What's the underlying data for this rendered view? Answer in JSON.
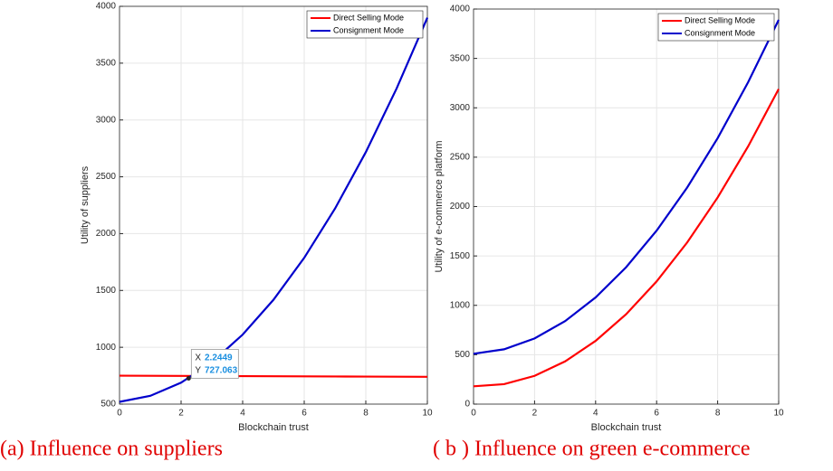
{
  "chart_data": [
    {
      "type": "line",
      "caption": "(a) Influence on suppliers",
      "xlabel": "Blockchain trust",
      "ylabel": "Utility of suppliers",
      "x": [
        0,
        1,
        2,
        3,
        4,
        5,
        6,
        7,
        8,
        9,
        10
      ],
      "series": [
        {
          "name": "Direct Selling Mode",
          "color": "#ff0000",
          "values": [
            750,
            749,
            748,
            747,
            746,
            745,
            744,
            743,
            742,
            741,
            740
          ]
        },
        {
          "name": "Consignment Mode",
          "color": "#0000cc",
          "values": [
            520,
            572.7,
            688.8,
            868.3,
            1111.2,
            1417.5,
            1787.2,
            2220.3,
            2716.8,
            3276.7,
            3900
          ]
        }
      ],
      "xlim": [
        0,
        10
      ],
      "xticks": [
        0,
        2,
        4,
        6,
        8,
        10
      ],
      "ylim": [
        500,
        4000
      ],
      "yticks": [
        500,
        1000,
        1500,
        2000,
        2500,
        3000,
        3500,
        4000
      ],
      "grid": true,
      "legend": "northeast",
      "datatip": {
        "x_prefix": "X",
        "x": 2.2449,
        "y_prefix": "Y",
        "y": 727.063
      }
    },
    {
      "type": "line",
      "caption": "( b ) Influence on green e-commerce",
      "xlabel": "Blockchain trust",
      "ylabel": "Utility of e-commerce platform",
      "x": [
        0,
        1,
        2,
        3,
        4,
        5,
        6,
        7,
        8,
        9,
        10
      ],
      "series": [
        {
          "name": "Direct Selling Mode",
          "color": "#ff0000",
          "values": [
            180,
            202,
            286,
            432,
            640,
            910,
            1242,
            1636,
            2092,
            2610,
            3190
          ]
        },
        {
          "name": "Consignment Mode",
          "color": "#0000cc",
          "values": [
            510,
            554.7,
            664.6,
            839.7,
            1080,
            1385.5,
            1756.2,
            2192.1,
            2693.2,
            3259.5,
            3890
          ]
        }
      ],
      "xlim": [
        0,
        10
      ],
      "xticks": [
        0,
        2,
        4,
        6,
        8,
        10
      ],
      "ylim": [
        0,
        4000
      ],
      "yticks": [
        0,
        500,
        1000,
        1500,
        2000,
        2500,
        3000,
        3500,
        4000
      ],
      "grid": true,
      "legend": "northeast"
    }
  ]
}
